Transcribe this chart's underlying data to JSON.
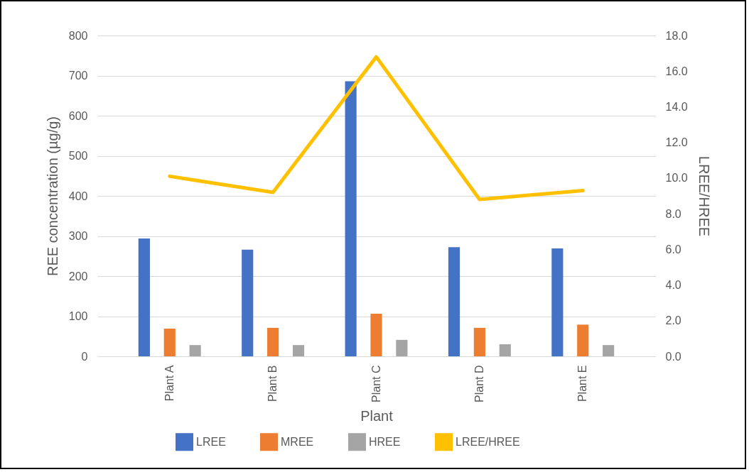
{
  "chart_data": {
    "type": "bar",
    "xlabel": "Plant",
    "ylabel": "REE concentration (µg/g)",
    "y2label": "LREE/HREE",
    "categories": [
      "Plant A",
      "Plant B",
      "Plant C",
      "Plant D",
      "Plant E"
    ],
    "series": [
      {
        "name": "LREE",
        "color": "#4472c4",
        "values": [
          294,
          266,
          686,
          272,
          269
        ]
      },
      {
        "name": "MREE",
        "color": "#ed7d31",
        "values": [
          69,
          71,
          106,
          71,
          79
        ]
      },
      {
        "name": "HREE",
        "color": "#a5a5a5",
        "values": [
          28,
          28,
          41,
          30,
          28
        ]
      },
      {
        "name": "LREE/HREE",
        "type": "line",
        "axis": "y2",
        "color": "#ffc000",
        "values": [
          10.1,
          9.2,
          16.8,
          8.8,
          9.3
        ]
      }
    ],
    "ylim": [
      0,
      800
    ],
    "yticks": [
      0,
      100,
      200,
      300,
      400,
      500,
      600,
      700,
      800
    ],
    "y2lim": [
      0,
      18
    ],
    "y2ticks": [
      {
        "value": 0,
        "label": "0.0"
      },
      {
        "value": 2,
        "label": "2.0"
      },
      {
        "value": 4,
        "label": "4.0"
      },
      {
        "value": 6,
        "label": "6.0"
      },
      {
        "value": 8,
        "label": "8.0"
      },
      {
        "value": 10,
        "label": "10.0"
      },
      {
        "value": 12,
        "label": "12.0"
      },
      {
        "value": 14,
        "label": "14.0"
      },
      {
        "value": 16,
        "label": "16.0"
      },
      {
        "value": 18,
        "label": "18.0"
      }
    ],
    "grid": "y",
    "legend": "bottom",
    "marker": "none",
    "line_style": "solid"
  }
}
